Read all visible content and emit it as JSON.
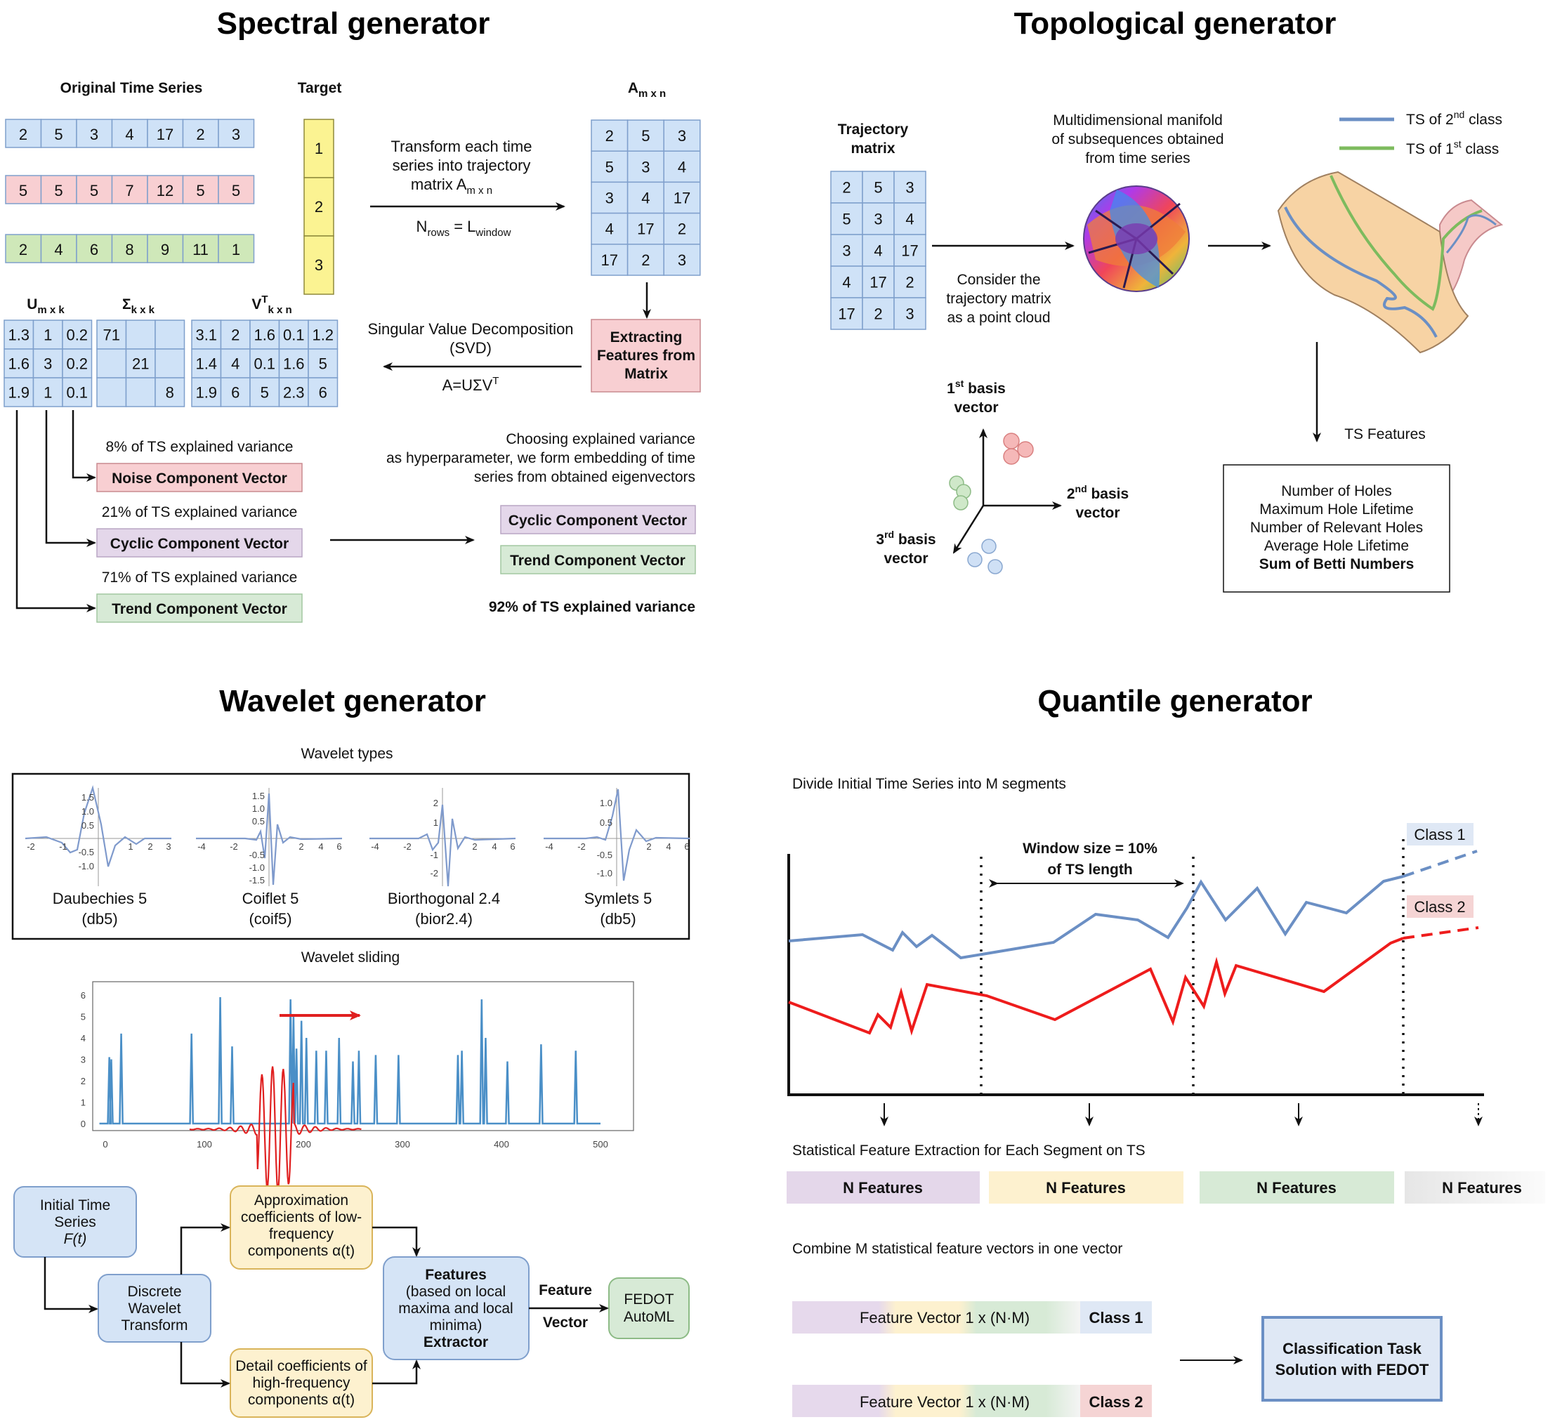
{
  "spectral": {
    "title": "Spectral generator",
    "original_label": "Original Time Series",
    "target_label": "Target",
    "series": [
      {
        "values": [
          "2",
          "5",
          "3",
          "4",
          "17",
          "2",
          "3"
        ],
        "color": "#cfe2f7"
      },
      {
        "values": [
          "5",
          "5",
          "5",
          "7",
          "12",
          "5",
          "5"
        ],
        "color": "#f8cfd2"
      },
      {
        "values": [
          "2",
          "4",
          "6",
          "8",
          "9",
          "11",
          "1"
        ],
        "color": "#cfe8b9"
      }
    ],
    "target_values": [
      "1",
      "2",
      "3"
    ],
    "transform_text": [
      "Transform each time",
      "series into trajectory",
      "matrix A"
    ],
    "transform_sub": "m x n",
    "nrows_label": "N",
    "nrows_sub": "rows",
    "nrows_eq": " = L",
    "nrows_sub2": "window",
    "a_label": "A",
    "a_sub": "m x n",
    "a_matrix": [
      [
        "2",
        "5",
        "3"
      ],
      [
        "5",
        "3",
        "4"
      ],
      [
        "3",
        "4",
        "17"
      ],
      [
        "4",
        "17",
        "2"
      ],
      [
        "17",
        "2",
        "3"
      ]
    ],
    "extract_box": [
      "Extracting",
      "Features from",
      "Matrix"
    ],
    "svd_text": [
      "Singular Value Decomposition",
      "(SVD)"
    ],
    "svd_formula": "A=UΣV",
    "svd_sup": "T",
    "u_label": "U",
    "u_sub": "m x k",
    "s_label": "Σ",
    "s_sub": "k x k",
    "v_label": "V",
    "v_sup": "T",
    "v_sub": "k x n",
    "u_matrix": [
      [
        "1.3",
        "1",
        "0.2"
      ],
      [
        "1.6",
        "3",
        "0.2"
      ],
      [
        "1.9",
        "1",
        "0.1"
      ]
    ],
    "s_matrix": [
      [
        "71",
        "",
        ""
      ],
      [
        "",
        "21",
        ""
      ],
      [
        "",
        "",
        "8"
      ]
    ],
    "v_matrix": [
      [
        "3.1",
        "2",
        "1.6",
        "0.1",
        "1.2"
      ],
      [
        "1.4",
        "4",
        "0.1",
        "1.6",
        "5"
      ],
      [
        "1.9",
        "6",
        "5",
        "2.3",
        "6"
      ]
    ],
    "noise_pct": "8% of TS explained variance",
    "noise_label": "Noise Component Vector",
    "cyclic_pct": "21% of TS explained variance",
    "cyclic_label": "Cyclic Component Vector",
    "trend_pct": "71% of TS explained variance",
    "trend_label": "Trend Component Vector",
    "choose_text": [
      "Choosing explained variance",
      "as hyperparameter, we form embedding of time",
      "series from obtained eigenvectors"
    ],
    "result_cyclic": "Cyclic Component Vector",
    "result_trend": "Trend Component Vector",
    "result_pct": "92% of TS explained variance"
  },
  "topological": {
    "title": "Topological generator",
    "traj_label": [
      "Trajectory",
      "matrix"
    ],
    "traj_matrix": [
      [
        "2",
        "5",
        "3"
      ],
      [
        "5",
        "3",
        "4"
      ],
      [
        "3",
        "4",
        "17"
      ],
      [
        "4",
        "17",
        "2"
      ],
      [
        "17",
        "2",
        "3"
      ]
    ],
    "manifold_text": [
      "Multidimensional manifold",
      "of subsequences obtained",
      "from time series"
    ],
    "consider_text": [
      "Consider the",
      "trajectory matrix",
      "as a point cloud"
    ],
    "legend_2nd": "TS of 2",
    "legend_2nd_sup": "nd",
    "legend_2nd_tail": " class",
    "legend_1st": "TS of 1",
    "legend_1st_sup": "st",
    "legend_1st_tail": " class",
    "legend_2nd_color": "#6b8fc4",
    "legend_1st_color": "#7dbb5e",
    "basis1": [
      "1",
      "st",
      " basis",
      "vector"
    ],
    "basis2": [
      "2",
      "nd",
      " basis",
      "vector"
    ],
    "basis3": [
      "3",
      "rd",
      " basis",
      "vector"
    ],
    "ts_features_label": "TS Features",
    "features": [
      "Number of Holes",
      "Maximum Hole Lifetime",
      "Number of Relevant Holes",
      "Average Hole Lifetime"
    ],
    "features_bold": "Sum of Betti Numbers"
  },
  "wavelet": {
    "title": "Wavelet generator",
    "types_label": "Wavelet types",
    "types": [
      {
        "name": "Daubechies 5",
        "code": "(db5)"
      },
      {
        "name": "Coiflet 5",
        "code": "(coif5)"
      },
      {
        "name": "Biorthogonal 2.4",
        "code": "(bior2.4)"
      },
      {
        "name": "Symlets 5",
        "code": "(db5)"
      }
    ],
    "db_y_ticks": [
      "1.5",
      "1.0",
      "0.5",
      "-0.5",
      "-1.0"
    ],
    "db_x_ticks": [
      "-2",
      "-1",
      "1",
      "2",
      "3"
    ],
    "coif_y_ticks": [
      "1.5",
      "1.0",
      "0.5",
      "-0.5",
      "-1.0",
      "-1.5"
    ],
    "coif_x_ticks": [
      "-4",
      "-2",
      "2",
      "4",
      "6"
    ],
    "bior_y_ticks": [
      "2",
      "1",
      "-1",
      "-2"
    ],
    "bior_x_ticks": [
      "-4",
      "-2",
      "2",
      "4",
      "6"
    ],
    "sym_y_ticks": [
      "1.0",
      "0.5",
      "-0.5",
      "-1.0"
    ],
    "sym_x_ticks": [
      "-4",
      "-2",
      "2",
      "4",
      "6"
    ],
    "sliding_label": "Wavelet sliding",
    "sliding_y_ticks": [
      "6",
      "5",
      "4",
      "3",
      "2",
      "1",
      "0"
    ],
    "sliding_x_ticks": [
      "0",
      "100",
      "200",
      "300",
      "400",
      "500"
    ],
    "sliding_color": "#4a8fc7",
    "wave_color": "#e02020",
    "flow": {
      "initial": [
        "Initial Time",
        "Series"
      ],
      "initial_italic": "F(t)",
      "dwt": [
        "Discrete",
        "Wavelet",
        "Transform"
      ],
      "approx": [
        "Approximation",
        "coefficients of low-",
        "frequency",
        "components α(t)"
      ],
      "detail": [
        "Detail coefficients of",
        "high-frequency",
        "components α(t)"
      ],
      "features_bold": "Features",
      "features": [
        "(based on local",
        "maxima and local",
        "minima)"
      ],
      "extractor_bold": "Extractor",
      "edge_label": [
        "Feature",
        "Vector"
      ],
      "fedot": [
        "FEDOT",
        "AutoML"
      ]
    }
  },
  "quantile": {
    "title": "Quantile generator",
    "divide_text": "Divide Initial Time Series into M segments",
    "window_text": [
      "Window size = 10%",
      "of TS length"
    ],
    "class1": "Class 1",
    "class2": "Class 2",
    "class1_color": "#6b8fc4",
    "class2_color": "#ee1c1c",
    "stat_text": "Statistical Feature Extraction for Each Segment on TS",
    "n_features": [
      "N Features",
      "N Features",
      "N Features",
      "N Features"
    ],
    "n_colors": [
      "#e4d7ea",
      "#fdf1cf",
      "#d7ead6",
      "#eeeeee"
    ],
    "combine_text": "Combine M statistical feature vectors in one vector",
    "fv_label": "Feature Vector 1 x (N·M)",
    "fv_class1": "Class 1",
    "fv_class2": "Class 2",
    "solution": [
      "Classification Task",
      "Solution with FEDOT"
    ]
  }
}
